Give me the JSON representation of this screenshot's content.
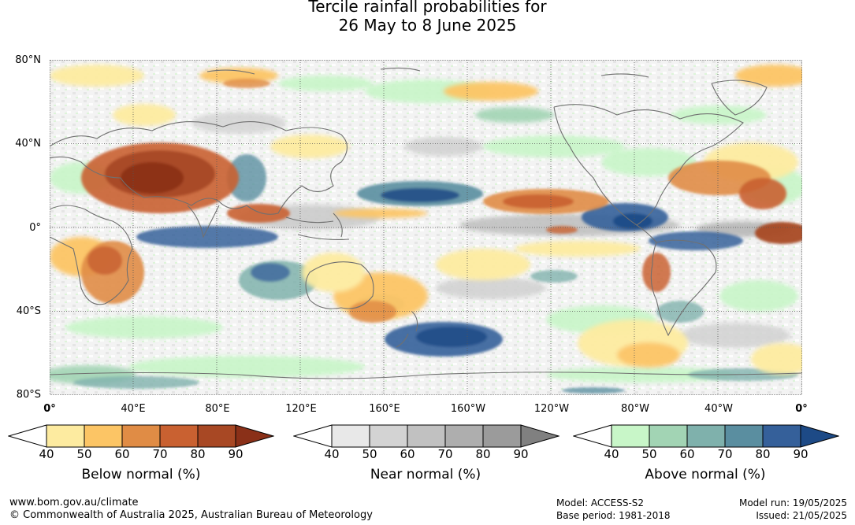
{
  "title": {
    "line1": "Tercile rainfall probabilities for",
    "line2": "26 May to 8 June 2025"
  },
  "map": {
    "lat_labels": [
      "80°N",
      "40°N",
      "0°",
      "40°S",
      "80°S"
    ],
    "lon_labels": [
      "0°",
      "40°E",
      "80°E",
      "120°E",
      "160°E",
      "160°W",
      "120°W",
      "80°W",
      "40°W",
      "0°"
    ]
  },
  "colorbars": [
    {
      "name": "below-normal",
      "title": "Below normal (%)",
      "ticks": [
        "40",
        "50",
        "60",
        "70",
        "80",
        "90"
      ],
      "colors": [
        "#ffffff",
        "#fdeba0",
        "#fcc565",
        "#e08c45",
        "#c96131",
        "#a84824",
        "#8a3018"
      ]
    },
    {
      "name": "near-normal",
      "title": "Near normal (%)",
      "ticks": [
        "40",
        "50",
        "60",
        "70",
        "80",
        "90"
      ],
      "colors": [
        "#ffffff",
        "#e8e8e8",
        "#d3d3d3",
        "#c1c1c1",
        "#aeaeae",
        "#9b9b9b",
        "#808080"
      ]
    },
    {
      "name": "above-normal",
      "title": "Above normal (%)",
      "ticks": [
        "40",
        "50",
        "60",
        "70",
        "80",
        "90"
      ],
      "colors": [
        "#ffffff",
        "#c8f6c8",
        "#a2d4b4",
        "#7fb1ac",
        "#5a8ea0",
        "#35609a",
        "#1d4a86"
      ]
    }
  ],
  "footer": {
    "url": "www.bom.gov.au/climate",
    "copyright": "© Commonwealth of Australia 2025, Australian Bureau of Meteorology",
    "model": "Model: ACCESS-S2",
    "base_period": "Base period: 1981-2018",
    "model_run": "Model run: 19/05/2025",
    "issued": "Issued: 21/05/2025"
  }
}
